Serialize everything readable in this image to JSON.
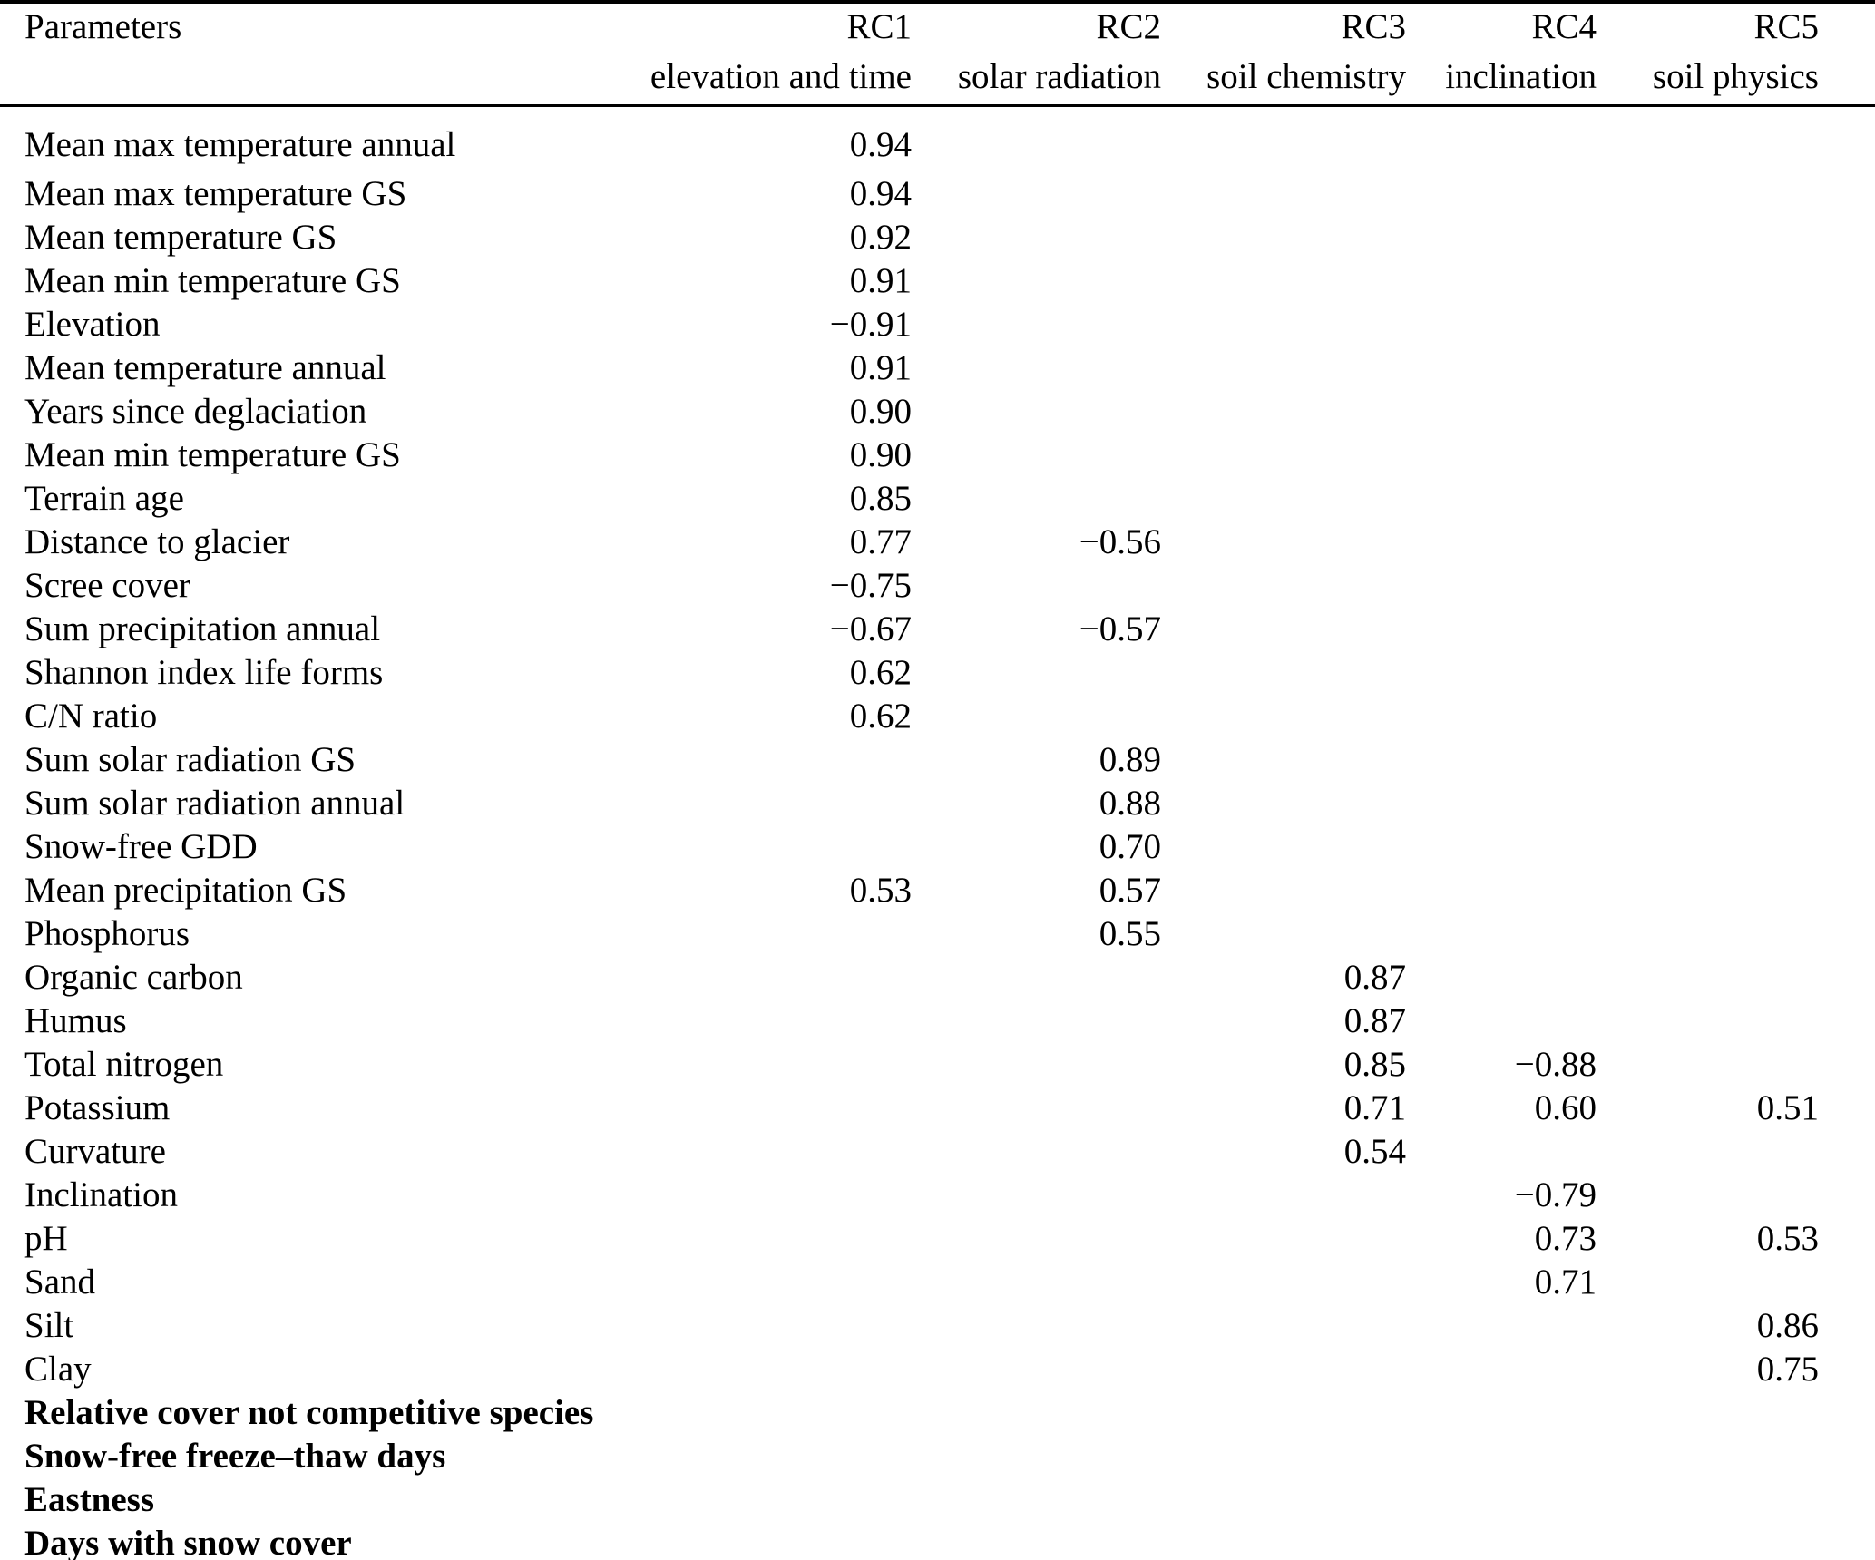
{
  "page": {
    "background_color": "#ffffff",
    "text_color": "#000000",
    "rule_color": "#000000"
  },
  "table": {
    "columns": [
      {
        "id": "parameters",
        "label": "Parameters",
        "sublabel": ""
      },
      {
        "id": "rc1",
        "label": "RC1",
        "sublabel": "elevation and time"
      },
      {
        "id": "rc2",
        "label": "RC2",
        "sublabel": "solar radiation"
      },
      {
        "id": "rc3",
        "label": "RC3",
        "sublabel": "soil chemistry"
      },
      {
        "id": "rc4",
        "label": "RC4",
        "sublabel": "inclination"
      },
      {
        "id": "rc5",
        "label": "RC5",
        "sublabel": "soil physics"
      }
    ],
    "rows": [
      {
        "parameter": "Mean max temperature annual",
        "rc1": "0.94",
        "rc2": "",
        "rc3": "",
        "rc4": "",
        "rc5": "",
        "bold": false
      },
      {
        "parameter": "Mean max temperature GS",
        "rc1": "0.94",
        "rc2": "",
        "rc3": "",
        "rc4": "",
        "rc5": "",
        "bold": false
      },
      {
        "parameter": "Mean temperature GS",
        "rc1": "0.92",
        "rc2": "",
        "rc3": "",
        "rc4": "",
        "rc5": "",
        "bold": false
      },
      {
        "parameter": "Mean min temperature GS",
        "rc1": "0.91",
        "rc2": "",
        "rc3": "",
        "rc4": "",
        "rc5": "",
        "bold": false
      },
      {
        "parameter": "Elevation",
        "rc1": "−0.91",
        "rc2": "",
        "rc3": "",
        "rc4": "",
        "rc5": "",
        "bold": false
      },
      {
        "parameter": "Mean temperature annual",
        "rc1": "0.91",
        "rc2": "",
        "rc3": "",
        "rc4": "",
        "rc5": "",
        "bold": false
      },
      {
        "parameter": "Years since deglaciation",
        "rc1": "0.90",
        "rc2": "",
        "rc3": "",
        "rc4": "",
        "rc5": "",
        "bold": false
      },
      {
        "parameter": "Mean min temperature GS",
        "rc1": "0.90",
        "rc2": "",
        "rc3": "",
        "rc4": "",
        "rc5": "",
        "bold": false
      },
      {
        "parameter": "Terrain age",
        "rc1": "0.85",
        "rc2": "",
        "rc3": "",
        "rc4": "",
        "rc5": "",
        "bold": false
      },
      {
        "parameter": "Distance to glacier",
        "rc1": "0.77",
        "rc2": "−0.56",
        "rc3": "",
        "rc4": "",
        "rc5": "",
        "bold": false
      },
      {
        "parameter": "Scree cover",
        "rc1": "−0.75",
        "rc2": "",
        "rc3": "",
        "rc4": "",
        "rc5": "",
        "bold": false
      },
      {
        "parameter": "Sum precipitation annual",
        "rc1": "−0.67",
        "rc2": "−0.57",
        "rc3": "",
        "rc4": "",
        "rc5": "",
        "bold": false
      },
      {
        "parameter": "Shannon index life forms",
        "rc1": "0.62",
        "rc2": "",
        "rc3": "",
        "rc4": "",
        "rc5": "",
        "bold": false
      },
      {
        "parameter": "C/N ratio",
        "rc1": "0.62",
        "rc2": "",
        "rc3": "",
        "rc4": "",
        "rc5": "",
        "bold": false
      },
      {
        "parameter": "Sum solar radiation GS",
        "rc1": "",
        "rc2": "0.89",
        "rc3": "",
        "rc4": "",
        "rc5": "",
        "bold": false
      },
      {
        "parameter": "Sum solar radiation annual",
        "rc1": "",
        "rc2": "0.88",
        "rc3": "",
        "rc4": "",
        "rc5": "",
        "bold": false
      },
      {
        "parameter": "Snow-free GDD",
        "rc1": "",
        "rc2": "0.70",
        "rc3": "",
        "rc4": "",
        "rc5": "",
        "bold": false
      },
      {
        "parameter": "Mean precipitation GS",
        "rc1": "0.53",
        "rc2": "0.57",
        "rc3": "",
        "rc4": "",
        "rc5": "",
        "bold": false
      },
      {
        "parameter": "Phosphorus",
        "rc1": "",
        "rc2": "0.55",
        "rc3": "",
        "rc4": "",
        "rc5": "",
        "bold": false
      },
      {
        "parameter": "Organic carbon",
        "rc1": "",
        "rc2": "",
        "rc3": "0.87",
        "rc4": "",
        "rc5": "",
        "bold": false
      },
      {
        "parameter": "Humus",
        "rc1": "",
        "rc2": "",
        "rc3": "0.87",
        "rc4": "",
        "rc5": "",
        "bold": false
      },
      {
        "parameter": "Total nitrogen",
        "rc1": "",
        "rc2": "",
        "rc3": "0.85",
        "rc4": "−0.88",
        "rc5": "",
        "bold": false
      },
      {
        "parameter": "Potassium",
        "rc1": "",
        "rc2": "",
        "rc3": "0.71",
        "rc4": "0.60",
        "rc5": "0.51",
        "bold": false
      },
      {
        "parameter": "Curvature",
        "rc1": "",
        "rc2": "",
        "rc3": "0.54",
        "rc4": "",
        "rc5": "",
        "bold": false
      },
      {
        "parameter": "Inclination",
        "rc1": "",
        "rc2": "",
        "rc3": "",
        "rc4": "−0.79",
        "rc5": "",
        "bold": false
      },
      {
        "parameter": "pH",
        "rc1": "",
        "rc2": "",
        "rc3": "",
        "rc4": "0.73",
        "rc5": "0.53",
        "bold": false
      },
      {
        "parameter": "Sand",
        "rc1": "",
        "rc2": "",
        "rc3": "",
        "rc4": "0.71",
        "rc5": "",
        "bold": false
      },
      {
        "parameter": "Silt",
        "rc1": "",
        "rc2": "",
        "rc3": "",
        "rc4": "",
        "rc5": "0.86",
        "bold": false
      },
      {
        "parameter": "Clay",
        "rc1": "",
        "rc2": "",
        "rc3": "",
        "rc4": "",
        "rc5": "0.75",
        "bold": false
      },
      {
        "parameter": "Relative cover not competitive species",
        "rc1": "",
        "rc2": "",
        "rc3": "",
        "rc4": "",
        "rc5": "",
        "bold": true
      },
      {
        "parameter": "Snow-free freeze–thaw days",
        "rc1": "",
        "rc2": "",
        "rc3": "",
        "rc4": "",
        "rc5": "",
        "bold": true
      },
      {
        "parameter": "Eastness",
        "rc1": "",
        "rc2": "",
        "rc3": "",
        "rc4": "",
        "rc5": "",
        "bold": true
      },
      {
        "parameter": "Days with snow cover",
        "rc1": "",
        "rc2": "",
        "rc3": "",
        "rc4": "",
        "rc5": "",
        "bold": true
      }
    ]
  }
}
